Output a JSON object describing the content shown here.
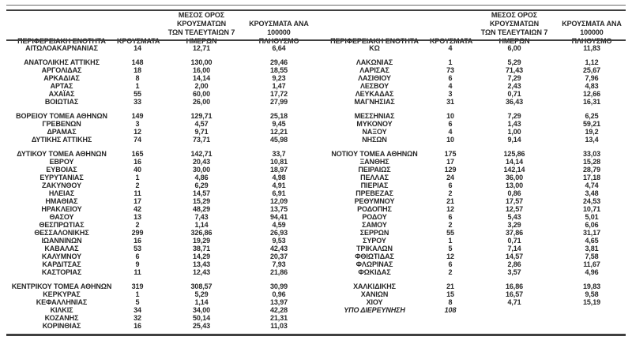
{
  "table": {
    "headers": {
      "region": "ΠΕΡΙΦΕΡΕΙΑΚΗ ΕΝΟΤΗΤΑ",
      "cases": "ΚΡΟΥΣΜΑΤΑ",
      "avg7": "ΜΕΣΟΣ ΟΡΟΣ ΚΡΟΥΣΜΑΤΩΝ\nΤΩΝ ΤΕΛΕΥΤΑΙΩΝ 7\nΗΜΕΡΩΝ",
      "per100k": "ΚΡΟΥΣΜΑΤΑ ΑΝΑ 100000\nΠΛΗΘΥΣΜΟ"
    },
    "left_rows": [
      {
        "region": "ΑΙΤΩΛΟΑΚΑΡΝΑΝΙΑΣ",
        "cases": "14",
        "avg7": "12,71",
        "per100k": "6,64"
      },
      {
        "region": "ΑΝΑΤΟΛΙΚΗΣ ΑΤΤΙΚΗΣ",
        "cases": "148",
        "avg7": "130,00",
        "per100k": "29,46",
        "gap_before": true
      },
      {
        "region": "ΑΡΓΟΛΙΔΑΣ",
        "cases": "18",
        "avg7": "16,00",
        "per100k": "18,55"
      },
      {
        "region": "ΑΡΚΑΔΙΑΣ",
        "cases": "8",
        "avg7": "14,14",
        "per100k": "9,23"
      },
      {
        "region": "ΑΡΤΑΣ",
        "cases": "1",
        "avg7": "2,00",
        "per100k": "1,47"
      },
      {
        "region": "ΑΧΑΪΑΣ",
        "cases": "55",
        "avg7": "60,00",
        "per100k": "17,72"
      },
      {
        "region": "ΒΟΙΩΤΙΑΣ",
        "cases": "33",
        "avg7": "26,00",
        "per100k": "27,99"
      },
      {
        "region": "ΒΟΡΕΙΟΥ ΤΟΜΕΑ ΑΘΗΝΩΝ",
        "cases": "149",
        "avg7": "129,71",
        "per100k": "25,18",
        "gap_before": true
      },
      {
        "region": "ΓΡΕΒΕΝΩΝ",
        "cases": "3",
        "avg7": "4,57",
        "per100k": "9,45"
      },
      {
        "region": "ΔΡΑΜΑΣ",
        "cases": "12",
        "avg7": "9,71",
        "per100k": "12,21"
      },
      {
        "region": "ΔΥΤΙΚΗΣ ΑΤΤΙΚΗΣ",
        "cases": "74",
        "avg7": "73,71",
        "per100k": "45,98"
      },
      {
        "region": "ΔΥΤΙΚΟΥ ΤΟΜΕΑ ΑΘΗΝΩΝ",
        "cases": "165",
        "avg7": "142,71",
        "per100k": "33,7",
        "gap_before": true
      },
      {
        "region": "ΕΒΡΟΥ",
        "cases": "16",
        "avg7": "20,43",
        "per100k": "10,81"
      },
      {
        "region": "ΕΥΒΟΙΑΣ",
        "cases": "40",
        "avg7": "30,00",
        "per100k": "18,97"
      },
      {
        "region": "ΕΥΡΥΤΑΝΙΑΣ",
        "cases": "1",
        "avg7": "4,86",
        "per100k": "4,98"
      },
      {
        "region": "ΖΑΚΥΝΘΟΥ",
        "cases": "2",
        "avg7": "6,29",
        "per100k": "4,91"
      },
      {
        "region": "ΗΛΕΙΑΣ",
        "cases": "11",
        "avg7": "14,57",
        "per100k": "6,91"
      },
      {
        "region": "ΗΜΑΘΙΑΣ",
        "cases": "17",
        "avg7": "15,29",
        "per100k": "12,09"
      },
      {
        "region": "ΗΡΑΚΛΕΙΟΥ",
        "cases": "42",
        "avg7": "48,29",
        "per100k": "13,75"
      },
      {
        "region": "ΘΑΣΟΥ",
        "cases": "13",
        "avg7": "7,43",
        "per100k": "94,41"
      },
      {
        "region": "ΘΕΣΠΡΩΤΙΑΣ",
        "cases": "2",
        "avg7": "1,14",
        "per100k": "4,59"
      },
      {
        "region": "ΘΕΣΣΑΛΟΝΙΚΗΣ",
        "cases": "299",
        "avg7": "326,86",
        "per100k": "26,93"
      },
      {
        "region": "ΙΩΑΝΝΙΝΩΝ",
        "cases": "16",
        "avg7": "19,29",
        "per100k": "9,53"
      },
      {
        "region": "ΚΑΒΑΛΑΣ",
        "cases": "53",
        "avg7": "38,71",
        "per100k": "42,43"
      },
      {
        "region": "ΚΑΛΥΜΝΟΥ",
        "cases": "6",
        "avg7": "14,29",
        "per100k": "20,37"
      },
      {
        "region": "ΚΑΡΔΙΤΣΑΣ",
        "cases": "9",
        "avg7": "13,43",
        "per100k": "7,93"
      },
      {
        "region": "ΚΑΣΤΟΡΙΑΣ",
        "cases": "11",
        "avg7": "12,43",
        "per100k": "21,86"
      },
      {
        "region": "ΚΕΝΤΡΙΚΟΥ ΤΟΜΕΑ ΑΘΗΝΩΝ",
        "cases": "319",
        "avg7": "308,57",
        "per100k": "30,99",
        "gap_before": true
      },
      {
        "region": "ΚΕΡΚΥΡΑΣ",
        "cases": "1",
        "avg7": "5,29",
        "per100k": "0,96"
      },
      {
        "region": "ΚΕΦΑΛΛΗΝΙΑΣ",
        "cases": "5",
        "avg7": "1,14",
        "per100k": "13,97"
      },
      {
        "region": "ΚΙΛΚΙΣ",
        "cases": "34",
        "avg7": "34,00",
        "per100k": "42,28"
      },
      {
        "region": "ΚΟΖΑΝΗΣ",
        "cases": "32",
        "avg7": "50,14",
        "per100k": "21,31"
      },
      {
        "region": "ΚΟΡΙΝΘΙΑΣ",
        "cases": "16",
        "avg7": "25,43",
        "per100k": "11,03"
      }
    ],
    "right_rows": [
      {
        "region": "ΚΩ",
        "cases": "4",
        "avg7": "6,00",
        "per100k": "11,83"
      },
      {
        "region": "ΛΑΚΩΝΙΑΣ",
        "cases": "1",
        "avg7": "5,29",
        "per100k": "1,12",
        "gap_before": true
      },
      {
        "region": "ΛΑΡΙΣΑΣ",
        "cases": "73",
        "avg7": "71,43",
        "per100k": "25,67"
      },
      {
        "region": "ΛΑΣΙΘΙΟΥ",
        "cases": "6",
        "avg7": "7,29",
        "per100k": "7,96"
      },
      {
        "region": "ΛΕΣΒΟΥ",
        "cases": "4",
        "avg7": "2,43",
        "per100k": "4,83"
      },
      {
        "region": "ΛΕΥΚΑΔΑΣ",
        "cases": "3",
        "avg7": "0,71",
        "per100k": "12,66"
      },
      {
        "region": "ΜΑΓΝΗΣΙΑΣ",
        "cases": "31",
        "avg7": "36,43",
        "per100k": "16,31"
      },
      {
        "region": "ΜΕΣΣΗΝΙΑΣ",
        "cases": "10",
        "avg7": "7,29",
        "per100k": "6,25",
        "gap_before": true
      },
      {
        "region": "ΜΥΚΟΝΟΥ",
        "cases": "6",
        "avg7": "1,43",
        "per100k": "59,21"
      },
      {
        "region": "ΝΑΞΟΥ",
        "cases": "4",
        "avg7": "1,00",
        "per100k": "19,2"
      },
      {
        "region": "ΝΗΣΩΝ",
        "cases": "10",
        "avg7": "9,14",
        "per100k": "13,4"
      },
      {
        "region": "ΝΟΤΙΟΥ ΤΟΜΕΑ ΑΘΗΝΩΝ",
        "cases": "175",
        "avg7": "125,86",
        "per100k": "33,03",
        "gap_before": true
      },
      {
        "region": "ΞΑΝΘΗΣ",
        "cases": "17",
        "avg7": "14,14",
        "per100k": "15,28"
      },
      {
        "region": "ΠΕΙΡΑΙΩΣ",
        "cases": "129",
        "avg7": "142,14",
        "per100k": "28,79"
      },
      {
        "region": "ΠΕΛΛΑΣ",
        "cases": "24",
        "avg7": "36,00",
        "per100k": "17,18"
      },
      {
        "region": "ΠΙΕΡΙΑΣ",
        "cases": "6",
        "avg7": "13,00",
        "per100k": "4,74"
      },
      {
        "region": "ΠΡΕΒΕΖΑΣ",
        "cases": "2",
        "avg7": "0,86",
        "per100k": "3,48"
      },
      {
        "region": "ΡΕΘΥΜΝΟΥ",
        "cases": "21",
        "avg7": "17,57",
        "per100k": "24,53"
      },
      {
        "region": "ΡΟΔΟΠΗΣ",
        "cases": "12",
        "avg7": "12,57",
        "per100k": "10,71"
      },
      {
        "region": "ΡΟΔΟΥ",
        "cases": "6",
        "avg7": "5,43",
        "per100k": "5,01"
      },
      {
        "region": "ΣΑΜΟΥ",
        "cases": "2",
        "avg7": "3,29",
        "per100k": "6,06"
      },
      {
        "region": "ΣΕΡΡΩΝ",
        "cases": "55",
        "avg7": "37,86",
        "per100k": "31,17"
      },
      {
        "region": "ΣΥΡΟΥ",
        "cases": "1",
        "avg7": "0,71",
        "per100k": "4,65"
      },
      {
        "region": "ΤΡΙΚΑΛΩΝ",
        "cases": "5",
        "avg7": "7,14",
        "per100k": "3,81"
      },
      {
        "region": "ΦΘΙΩΤΙΔΑΣ",
        "cases": "12",
        "avg7": "14,57",
        "per100k": "7,58"
      },
      {
        "region": "ΦΛΩΡΙΝΑΣ",
        "cases": "6",
        "avg7": "2,86",
        "per100k": "11,67"
      },
      {
        "region": "ΦΩΚΙΔΑΣ",
        "cases": "2",
        "avg7": "3,57",
        "per100k": "4,96"
      },
      {
        "region": "ΧΑΛΚΙΔΙΚΗΣ",
        "cases": "21",
        "avg7": "16,86",
        "per100k": "19,83",
        "gap_before": true
      },
      {
        "region": "ΧΑΝΙΩΝ",
        "cases": "15",
        "avg7": "16,57",
        "per100k": "9,58"
      },
      {
        "region": "ΧΙΟΥ",
        "cases": "8",
        "avg7": "4,71",
        "per100k": "15,19"
      },
      {
        "region": "ΥΠΟ ΔΙΕΡΕΥΝΗΣΗ",
        "cases": "108",
        "avg7": "",
        "per100k": "",
        "italic": true
      }
    ]
  }
}
